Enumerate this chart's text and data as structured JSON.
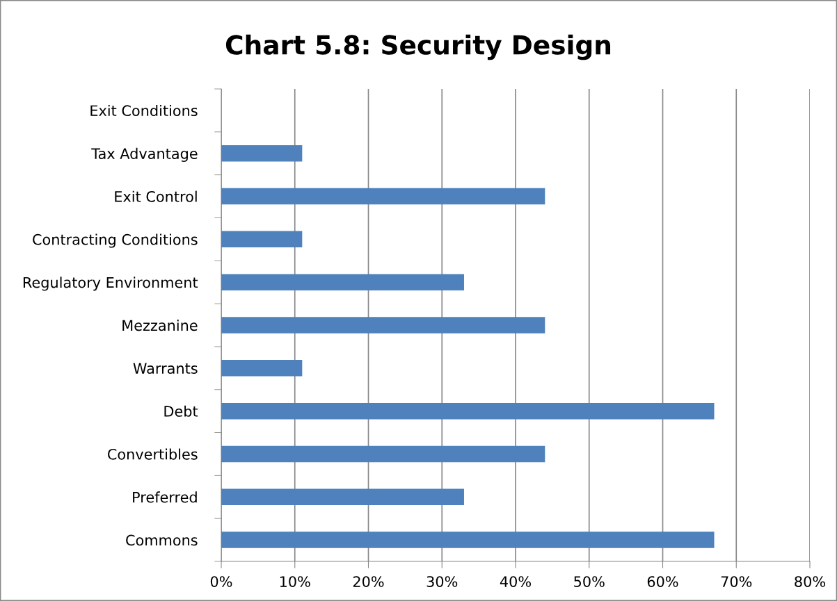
{
  "chart_data": {
    "type": "bar",
    "orientation": "horizontal",
    "title": "Chart 5.8: Security Design",
    "categories": [
      "Exit Conditions",
      "Tax Advantage",
      "Exit Control",
      "Contracting Conditions",
      "Regulatory Environment",
      "Mezzanine",
      "Warrants",
      "Debt",
      "Convertibles",
      "Preferred",
      "Commons"
    ],
    "values": [
      0,
      11,
      44,
      11,
      33,
      44,
      11,
      67,
      44,
      33,
      67
    ],
    "color": "#4f81bd",
    "xlim": [
      0,
      80
    ],
    "xticks": [
      {
        "value": 0,
        "label": "0%"
      },
      {
        "value": 10,
        "label": "10%"
      },
      {
        "value": 20,
        "label": "20%"
      },
      {
        "value": 30,
        "label": "30%"
      },
      {
        "value": 40,
        "label": "40%"
      },
      {
        "value": 50,
        "label": "50%"
      },
      {
        "value": 60,
        "label": "60%"
      },
      {
        "value": 70,
        "label": "70%"
      },
      {
        "value": 80,
        "label": "80%"
      }
    ],
    "grid": "x"
  }
}
